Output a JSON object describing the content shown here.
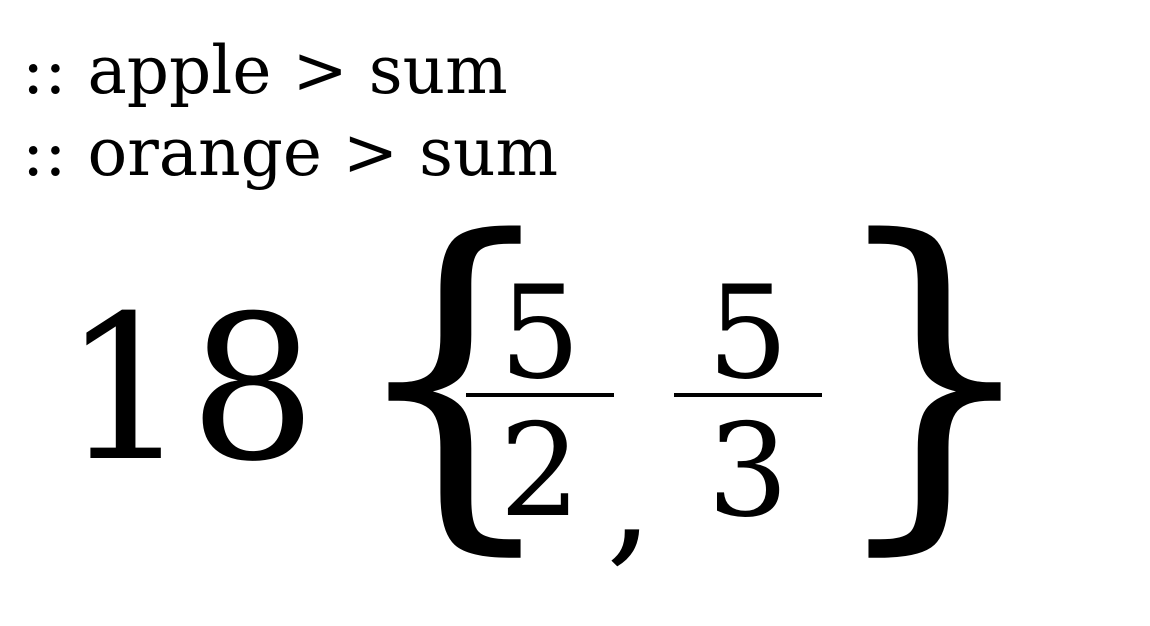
{
  "lines": [
    ":: apple > sum",
    ":: orange > sum"
  ],
  "expression": {
    "coefficient": "18",
    "open_brace": "{",
    "close_brace": "}",
    "fractions": [
      {
        "numerator": "5",
        "denominator": "2"
      },
      {
        "numerator": "5",
        "denominator": "3"
      }
    ],
    "separator": ","
  }
}
